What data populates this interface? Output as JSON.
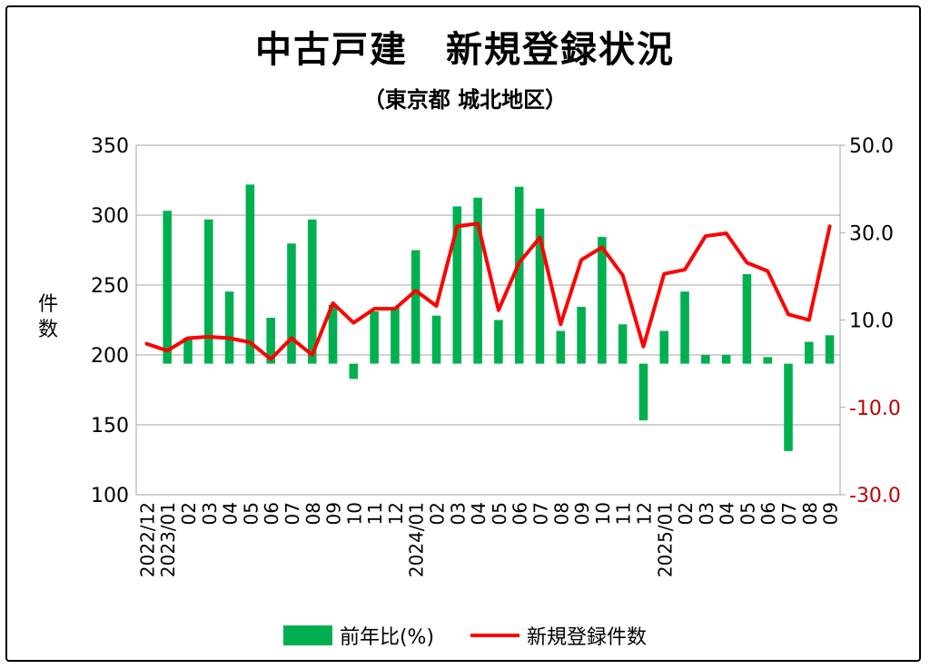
{
  "chart_data": {
    "type": "bar+line",
    "title": "中古戸建　新規登録状況",
    "subtitle": "（東京都 城北地区）",
    "ylabel": "件数",
    "y_left": {
      "min": 100,
      "max": 350,
      "ticks": [
        "350",
        "300",
        "250",
        "200",
        "150",
        "100"
      ],
      "tick_values": [
        350,
        300,
        250,
        200,
        150,
        100
      ]
    },
    "y_right": {
      "min": -30,
      "max": 50,
      "ticks": [
        "50.0",
        "30.0",
        "10.0",
        "-10.0",
        "-30.0"
      ],
      "tick_values": [
        50,
        30,
        10,
        -10,
        -30
      ],
      "color": "#000000",
      "negative_color": "#c00000"
    },
    "grid": true,
    "legend_position": "bottom",
    "categories": [
      "2022/12",
      "2023/01",
      "02",
      "03",
      "04",
      "05",
      "06",
      "07",
      "08",
      "09",
      "10",
      "11",
      "12",
      "2024/01",
      "02",
      "03",
      "04",
      "05",
      "06",
      "07",
      "08",
      "09",
      "10",
      "11",
      "12",
      "2025/01",
      "02",
      "03",
      "04",
      "05",
      "06",
      "07",
      "08",
      "09"
    ],
    "series": [
      {
        "name": "前年比(%)",
        "type": "bar",
        "axis": "right",
        "color": "#00b050",
        "values": [
          null,
          35.0,
          6.0,
          33.0,
          16.5,
          41.0,
          10.5,
          27.5,
          33.0,
          13.5,
          -3.5,
          12.0,
          12.8,
          26.0,
          11.0,
          36.0,
          38.0,
          10.0,
          40.5,
          35.5,
          7.5,
          13.0,
          29.0,
          9.0,
          -13.0,
          7.5,
          16.5,
          2.0,
          2.0,
          20.5,
          1.5,
          -20.0,
          5.0,
          6.5
        ]
      },
      {
        "name": "新規登録件数",
        "type": "line",
        "axis": "left",
        "color": "#ff0000",
        "values": [
          208,
          203,
          212,
          213,
          212,
          209,
          197,
          212,
          200,
          237,
          223,
          233,
          233,
          246,
          235,
          292,
          294,
          232,
          266,
          284,
          222,
          268,
          277,
          257,
          206,
          258,
          261,
          285,
          287,
          266,
          260,
          229,
          225,
          292
        ]
      }
    ]
  }
}
